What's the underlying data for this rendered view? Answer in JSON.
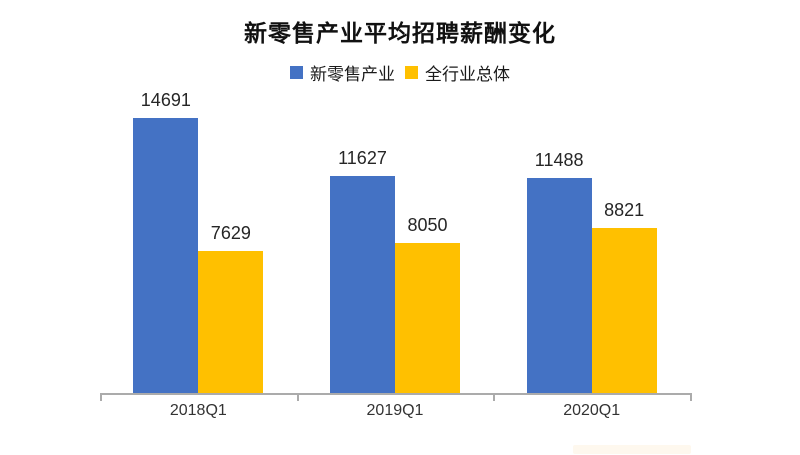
{
  "title": "新零售产业平均招聘薪酬变化",
  "legend": {
    "items": [
      {
        "label": "新零售产业",
        "color": "#4472C4"
      },
      {
        "label": "全行业总体",
        "color": "#FFC000"
      }
    ]
  },
  "colors": {
    "series_blue": "#4472C4",
    "series_yellow": "#FFC000",
    "axis_line": "#ABABAB",
    "data_label_text": "#262626",
    "axis_label_text": "#333333",
    "background": "#FFFFFF"
  },
  "chart_data": {
    "type": "bar",
    "categories": [
      "2018Q1",
      "2019Q1",
      "2020Q1"
    ],
    "series": [
      {
        "name": "新零售产业",
        "color": "#4472C4",
        "values": [
          14691,
          11627,
          11488
        ]
      },
      {
        "name": "全行业总体",
        "color": "#FFC000",
        "values": [
          7629,
          8050,
          8821
        ]
      }
    ],
    "title": "新零售产业平均招聘薪酬变化",
    "xlabel": "",
    "ylabel": "",
    "ylim": [
      0,
      15650
    ],
    "grid": false,
    "legend_position": "top",
    "data_labels": true
  }
}
